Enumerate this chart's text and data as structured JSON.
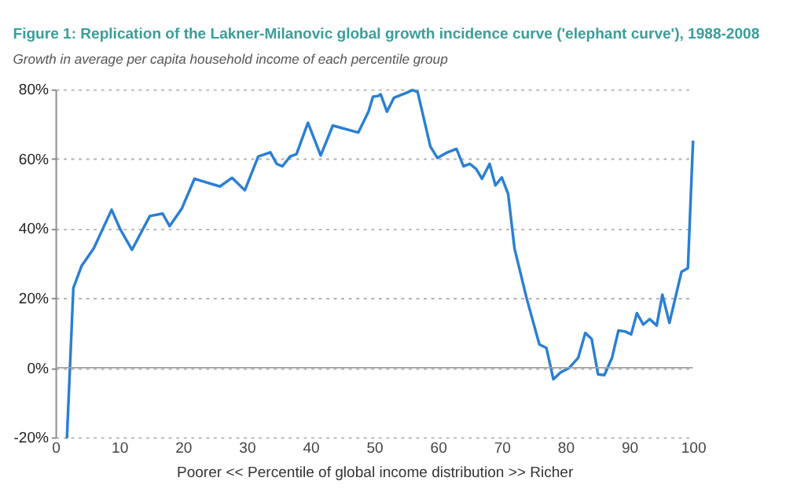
{
  "chart_data": {
    "type": "line",
    "title": "Figure 1:  Replication of the Lakner-Milanovic global growth incidence curve ('elephant curve'), 1988-2008",
    "subtitle": "Growth in average per capita household income of each percentile group",
    "xlabel": "Poorer   <<   Percentile of global income distribution   >>   Richer",
    "x": [
      1.8,
      2.8,
      4.1,
      6,
      8.8,
      10.1,
      12,
      14.8,
      16.8,
      17.9,
      19.8,
      21.8,
      25.8,
      27.7,
      29.7,
      31.8,
      33.7,
      34.7,
      35.6,
      36.8,
      37.8,
      39.6,
      41.6,
      43.5,
      47.5,
      49.1,
      49.8,
      50.6,
      51,
      52,
      53.1,
      54.9,
      56,
      56.8,
      58.8,
      59.9,
      61.5,
      62.9,
      64,
      65,
      66,
      66.9,
      68.1,
      69,
      70,
      71,
      72,
      73.9,
      75.9,
      77,
      78.1,
      79.2,
      80.6,
      82,
      83.1,
      84.1,
      85.1,
      86.1,
      87.3,
      88.3,
      89.4,
      90.3,
      91.2,
      92.2,
      93.2,
      94.3,
      95.2,
      96.3,
      98.2,
      99.2,
      100
    ],
    "series": [
      {
        "color": "#2a7fd4",
        "values": [
          -20,
          22.9,
          29.3,
          34.3,
          45.4,
          40,
          33.9,
          43.6,
          44.3,
          40.7,
          45.7,
          54.3,
          52.1,
          54.6,
          51,
          60.7,
          61.9,
          58.6,
          57.9,
          60.7,
          61.4,
          70.4,
          61,
          69.6,
          67.6,
          73.6,
          77.9,
          78.1,
          78.6,
          73.6,
          77.6,
          78.9,
          79.8,
          79.3,
          63.6,
          60.3,
          61.9,
          62.9,
          57.9,
          58.6,
          57.1,
          54.3,
          58.6,
          52.4,
          54.7,
          50,
          34.3,
          20,
          6.7,
          5.7,
          -3.3,
          -1.4,
          0,
          2.9,
          10,
          8.3,
          -1.9,
          -2.1,
          2.9,
          10.7,
          10.4,
          9.6,
          15.7,
          12.4,
          14,
          12.1,
          21,
          12.9,
          27.6,
          28.6,
          65
        ]
      }
    ],
    "xlim": [
      0,
      100
    ],
    "xticks": [
      0,
      10,
      20,
      30,
      40,
      50,
      60,
      70,
      80,
      90,
      100
    ],
    "ylim": [
      -20,
      80
    ],
    "yticks": [
      {
        "value": -20,
        "label": "-20%"
      },
      {
        "value": 0,
        "label": "0%"
      },
      {
        "value": 20,
        "label": "20%"
      },
      {
        "value": 40,
        "label": "40%"
      },
      {
        "value": 60,
        "label": "60%"
      },
      {
        "value": 80,
        "label": "80%"
      }
    ],
    "ref_lines": [
      {
        "axis": "y",
        "value": 0,
        "label": null,
        "color": "#a0a0a0",
        "line_style": "solid"
      }
    ],
    "grid": "y",
    "marker": "none",
    "line_style": "solid"
  }
}
